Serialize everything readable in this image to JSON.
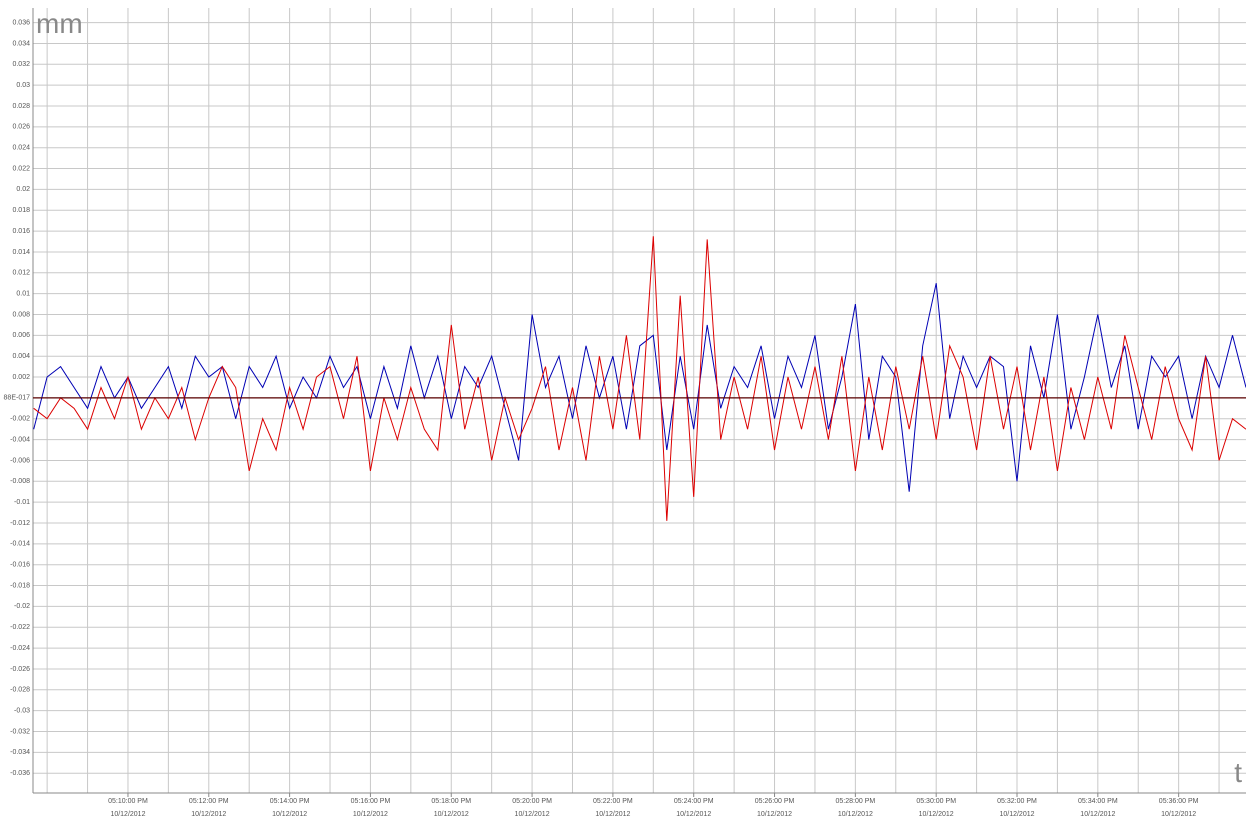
{
  "chart_data": {
    "type": "line",
    "x_label": "t",
    "y_label": "mm",
    "x": [
      "2012-10-12T17:07:40",
      "2012-10-12T17:08:00",
      "2012-10-12T17:08:20",
      "2012-10-12T17:08:40",
      "2012-10-12T17:09:00",
      "2012-10-12T17:09:20",
      "2012-10-12T17:09:40",
      "2012-10-12T17:10:00",
      "2012-10-12T17:10:20",
      "2012-10-12T17:10:40",
      "2012-10-12T17:11:00",
      "2012-10-12T17:11:20",
      "2012-10-12T17:11:40",
      "2012-10-12T17:12:00",
      "2012-10-12T17:12:20",
      "2012-10-12T17:12:40",
      "2012-10-12T17:13:00",
      "2012-10-12T17:13:20",
      "2012-10-12T17:13:40",
      "2012-10-12T17:14:00",
      "2012-10-12T17:14:20",
      "2012-10-12T17:14:40",
      "2012-10-12T17:15:00",
      "2012-10-12T17:15:20",
      "2012-10-12T17:15:40",
      "2012-10-12T17:16:00",
      "2012-10-12T17:16:20",
      "2012-10-12T17:16:40",
      "2012-10-12T17:17:00",
      "2012-10-12T17:17:20",
      "2012-10-12T17:17:40",
      "2012-10-12T17:18:00",
      "2012-10-12T17:18:20",
      "2012-10-12T17:18:40",
      "2012-10-12T17:19:00",
      "2012-10-12T17:19:20",
      "2012-10-12T17:19:40",
      "2012-10-12T17:20:00",
      "2012-10-12T17:20:20",
      "2012-10-12T17:20:40",
      "2012-10-12T17:21:00",
      "2012-10-12T17:21:20",
      "2012-10-12T17:21:40",
      "2012-10-12T17:22:00",
      "2012-10-12T17:22:20",
      "2012-10-12T17:22:40",
      "2012-10-12T17:23:00",
      "2012-10-12T17:23:20",
      "2012-10-12T17:23:40",
      "2012-10-12T17:24:00",
      "2012-10-12T17:24:20",
      "2012-10-12T17:24:40",
      "2012-10-12T17:25:00",
      "2012-10-12T17:25:20",
      "2012-10-12T17:25:40",
      "2012-10-12T17:26:00",
      "2012-10-12T17:26:20",
      "2012-10-12T17:26:40",
      "2012-10-12T17:27:00",
      "2012-10-12T17:27:20",
      "2012-10-12T17:27:40",
      "2012-10-12T17:28:00",
      "2012-10-12T17:28:20",
      "2012-10-12T17:28:40",
      "2012-10-12T17:29:00",
      "2012-10-12T17:29:20",
      "2012-10-12T17:29:40",
      "2012-10-12T17:30:00",
      "2012-10-12T17:30:20",
      "2012-10-12T17:30:40",
      "2012-10-12T17:31:00",
      "2012-10-12T17:31:20",
      "2012-10-12T17:31:40",
      "2012-10-12T17:32:00",
      "2012-10-12T17:32:20",
      "2012-10-12T17:32:40",
      "2012-10-12T17:33:00",
      "2012-10-12T17:33:20",
      "2012-10-12T17:33:40",
      "2012-10-12T17:34:00",
      "2012-10-12T17:34:20",
      "2012-10-12T17:34:40",
      "2012-10-12T17:35:00",
      "2012-10-12T17:35:20",
      "2012-10-12T17:35:40",
      "2012-10-12T17:36:00",
      "2012-10-12T17:36:20",
      "2012-10-12T17:36:40",
      "2012-10-12T17:37:00",
      "2012-10-12T17:37:20",
      "2012-10-12T17:37:40"
    ],
    "series": [
      {
        "color": "#0000b4",
        "values": [
          -0.003,
          0.002,
          0.003,
          0.001,
          -0.001,
          0.003,
          0,
          0.002,
          -0.001,
          0.001,
          0.003,
          -0.001,
          0.004,
          0.002,
          0.003,
          -0.002,
          0.003,
          0.001,
          0.004,
          -0.001,
          0.002,
          0,
          0.004,
          0.001,
          0.003,
          -0.002,
          0.003,
          -0.001,
          0.005,
          0,
          0.004,
          -0.002,
          0.003,
          0.001,
          0.004,
          -0.001,
          -0.006,
          0.008,
          0.001,
          0.004,
          -0.002,
          0.005,
          0,
          0.004,
          -0.003,
          0.005,
          0.006,
          -0.005,
          0.004,
          -0.003,
          0.007,
          -0.001,
          0.003,
          0.001,
          0.005,
          -0.002,
          0.004,
          0.001,
          0.006,
          -0.003,
          0.002,
          0.009,
          -0.004,
          0.004,
          0.002,
          -0.009,
          0.005,
          0.011,
          -0.002,
          0.004,
          0.001,
          0.004,
          0.003,
          -0.008,
          0.005,
          0,
          0.008,
          -0.003,
          0.002,
          0.008,
          0.001,
          0.005,
          -0.003,
          0.004,
          0.002,
          0.004,
          -0.002,
          0.004,
          0.001,
          0.006,
          0.001
        ]
      },
      {
        "color": "#dc0000",
        "values": [
          -0.001,
          -0.002,
          0,
          -0.001,
          -0.003,
          0.001,
          -0.002,
          0.002,
          -0.003,
          0,
          -0.002,
          0.001,
          -0.004,
          0,
          0.003,
          0.001,
          -0.007,
          -0.002,
          -0.005,
          0.001,
          -0.003,
          0.002,
          0.003,
          -0.002,
          0.004,
          -0.007,
          0,
          -0.004,
          0.001,
          -0.003,
          -0.005,
          0.007,
          -0.003,
          0.002,
          -0.006,
          0,
          -0.004,
          -0.001,
          0.003,
          -0.005,
          0.001,
          -0.006,
          0.004,
          -0.003,
          0.006,
          -0.004,
          0.0155,
          -0.0118,
          0.0098,
          -0.0095,
          0.0152,
          -0.004,
          0.002,
          -0.003,
          0.004,
          -0.005,
          0.002,
          -0.003,
          0.003,
          -0.004,
          0.004,
          -0.007,
          0.002,
          -0.005,
          0.003,
          -0.003,
          0.004,
          -0.004,
          0.005,
          0.002,
          -0.005,
          0.004,
          -0.003,
          0.003,
          -0.005,
          0.002,
          -0.007,
          0.001,
          -0.004,
          0.002,
          -0.003,
          0.006,
          0.001,
          -0.004,
          0.003,
          -0.002,
          -0.005,
          0.004,
          -0.006,
          -0.002,
          -0.003
        ]
      }
    ],
    "ylim": [
      -0.0379,
      0.0374
    ],
    "yticks": [
      -0.036,
      -0.034,
      -0.032,
      -0.03,
      -0.028,
      -0.026,
      -0.024,
      -0.022,
      -0.02,
      -0.018,
      -0.016,
      -0.014,
      -0.012,
      -0.01,
      -0.008,
      -0.006,
      -0.004,
      -0.002,
      {
        "value": 0,
        "label": "88E-017"
      },
      0.002,
      0.004,
      0.006,
      0.008,
      0.01,
      0.012,
      0.014,
      0.016,
      0.018,
      0.02,
      0.022,
      0.024,
      0.026,
      0.028,
      0.03,
      0.032,
      0.034,
      0.036
    ],
    "xlim": [
      "2012-10-12T17:07:39",
      "2012-10-12T17:37:40"
    ],
    "xticks": [
      {
        "value": "2012-10-12T17:08:00",
        "label": null
      },
      {
        "value": "2012-10-12T17:09:00",
        "label": null
      },
      {
        "value": "2012-10-12T17:10:00",
        "label": [
          "05:10:00 PM",
          "10/12/2012"
        ]
      },
      {
        "value": "2012-10-12T17:11:00",
        "label": null
      },
      {
        "value": "2012-10-12T17:12:00",
        "label": [
          "05:12:00 PM",
          "10/12/2012"
        ]
      },
      {
        "value": "2012-10-12T17:13:00",
        "label": null
      },
      {
        "value": "2012-10-12T17:14:00",
        "label": [
          "05:14:00 PM",
          "10/12/2012"
        ]
      },
      {
        "value": "2012-10-12T17:15:00",
        "label": null
      },
      {
        "value": "2012-10-12T17:16:00",
        "label": [
          "05:16:00 PM",
          "10/12/2012"
        ]
      },
      {
        "value": "2012-10-12T17:17:00",
        "label": null
      },
      {
        "value": "2012-10-12T17:18:00",
        "label": [
          "05:18:00 PM",
          "10/12/2012"
        ]
      },
      {
        "value": "2012-10-12T17:19:00",
        "label": null
      },
      {
        "value": "2012-10-12T17:20:00",
        "label": [
          "05:20:00 PM",
          "10/12/2012"
        ]
      },
      {
        "value": "2012-10-12T17:21:00",
        "label": null
      },
      {
        "value": "2012-10-12T17:22:00",
        "label": [
          "05:22:00 PM",
          "10/12/2012"
        ]
      },
      {
        "value": "2012-10-12T17:23:00",
        "label": null
      },
      {
        "value": "2012-10-12T17:24:00",
        "label": [
          "05:24:00 PM",
          "10/12/2012"
        ]
      },
      {
        "value": "2012-10-12T17:25:00",
        "label": null
      },
      {
        "value": "2012-10-12T17:26:00",
        "label": [
          "05:26:00 PM",
          "10/12/2012"
        ]
      },
      {
        "value": "2012-10-12T17:27:00",
        "label": null
      },
      {
        "value": "2012-10-12T17:28:00",
        "label": [
          "05:28:00 PM",
          "10/12/2012"
        ]
      },
      {
        "value": "2012-10-12T17:29:00",
        "label": null
      },
      {
        "value": "2012-10-12T17:30:00",
        "label": [
          "05:30:00 PM",
          "10/12/2012"
        ]
      },
      {
        "value": "2012-10-12T17:31:00",
        "label": null
      },
      {
        "value": "2012-10-12T17:32:00",
        "label": [
          "05:32:00 PM",
          "10/12/2012"
        ]
      },
      {
        "value": "2012-10-12T17:33:00",
        "label": null
      },
      {
        "value": "2012-10-12T17:34:00",
        "label": [
          "05:34:00 PM",
          "10/12/2012"
        ]
      },
      {
        "value": "2012-10-12T17:35:00",
        "label": null
      },
      {
        "value": "2012-10-12T17:36:00",
        "label": [
          "05:36:00 PM",
          "10/12/2012"
        ]
      },
      {
        "value": "2012-10-12T17:37:00",
        "label": null
      }
    ],
    "grid": true,
    "zero_line_color": "#5a0000"
  }
}
